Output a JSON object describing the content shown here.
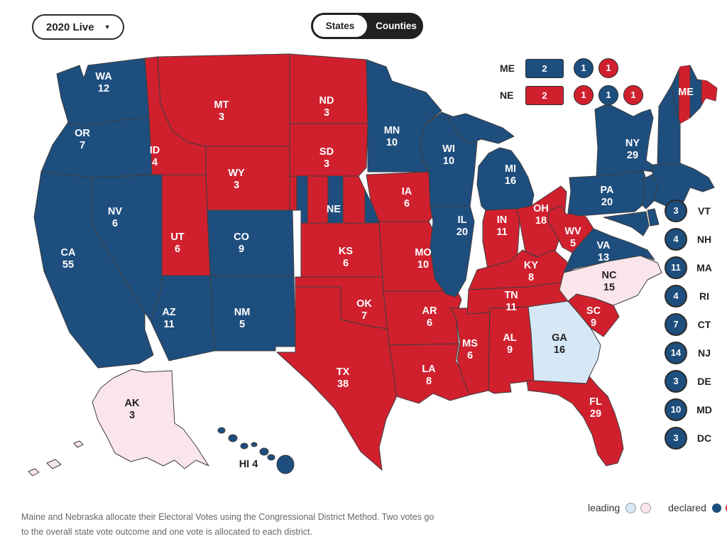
{
  "controls": {
    "year_dropdown": {
      "label": "2020 Live"
    },
    "view_toggle": {
      "options": [
        "States",
        "Counties"
      ],
      "selected": "States"
    }
  },
  "split_states_legend": {
    "rows": [
      {
        "state": "ME",
        "at_large_votes": "2",
        "at_large_party": "dem",
        "districts": [
          {
            "votes": "1",
            "party": "dem"
          },
          {
            "votes": "1",
            "party": "rep"
          }
        ]
      },
      {
        "state": "NE",
        "at_large_votes": "2",
        "at_large_party": "rep",
        "districts": [
          {
            "votes": "1",
            "party": "rep"
          },
          {
            "votes": "1",
            "party": "dem"
          },
          {
            "votes": "1",
            "party": "rep"
          }
        ]
      }
    ]
  },
  "small_states_list": [
    {
      "abbr": "VT",
      "votes": "3",
      "party": "dem",
      "status": "declared"
    },
    {
      "abbr": "NH",
      "votes": "4",
      "party": "dem",
      "status": "declared"
    },
    {
      "abbr": "MA",
      "votes": "11",
      "party": "dem",
      "status": "declared"
    },
    {
      "abbr": "RI",
      "votes": "4",
      "party": "dem",
      "status": "declared"
    },
    {
      "abbr": "CT",
      "votes": "7",
      "party": "dem",
      "status": "declared"
    },
    {
      "abbr": "NJ",
      "votes": "14",
      "party": "dem",
      "status": "declared"
    },
    {
      "abbr": "DE",
      "votes": "3",
      "party": "dem",
      "status": "declared"
    },
    {
      "abbr": "MD",
      "votes": "10",
      "party": "dem",
      "status": "declared"
    },
    {
      "abbr": "DC",
      "votes": "3",
      "party": "dem",
      "status": "declared"
    }
  ],
  "map_states": [
    {
      "abbr": "WA",
      "votes": "12",
      "party": "dem",
      "status": "declared"
    },
    {
      "abbr": "OR",
      "votes": "7",
      "party": "dem",
      "status": "declared"
    },
    {
      "abbr": "CA",
      "votes": "55",
      "party": "dem",
      "status": "declared"
    },
    {
      "abbr": "NV",
      "votes": "6",
      "party": "dem",
      "status": "declared"
    },
    {
      "abbr": "ID",
      "votes": "4",
      "party": "rep",
      "status": "declared"
    },
    {
      "abbr": "MT",
      "votes": "3",
      "party": "rep",
      "status": "declared"
    },
    {
      "abbr": "WY",
      "votes": "3",
      "party": "rep",
      "status": "declared"
    },
    {
      "abbr": "UT",
      "votes": "6",
      "party": "rep",
      "status": "declared"
    },
    {
      "abbr": "CO",
      "votes": "9",
      "party": "dem",
      "status": "declared"
    },
    {
      "abbr": "AZ",
      "votes": "11",
      "party": "dem",
      "status": "declared"
    },
    {
      "abbr": "NM",
      "votes": "5",
      "party": "dem",
      "status": "declared"
    },
    {
      "abbr": "ND",
      "votes": "3",
      "party": "rep",
      "status": "declared"
    },
    {
      "abbr": "SD",
      "votes": "3",
      "party": "rep",
      "status": "declared"
    },
    {
      "abbr": "NE",
      "votes": null,
      "party": "rep",
      "status": "declared",
      "split": true
    },
    {
      "abbr": "KS",
      "votes": "6",
      "party": "rep",
      "status": "declared"
    },
    {
      "abbr": "OK",
      "votes": "7",
      "party": "rep",
      "status": "declared"
    },
    {
      "abbr": "TX",
      "votes": "38",
      "party": "rep",
      "status": "declared"
    },
    {
      "abbr": "MN",
      "votes": "10",
      "party": "dem",
      "status": "declared"
    },
    {
      "abbr": "IA",
      "votes": "6",
      "party": "rep",
      "status": "declared"
    },
    {
      "abbr": "MO",
      "votes": "10",
      "party": "rep",
      "status": "declared"
    },
    {
      "abbr": "AR",
      "votes": "6",
      "party": "rep",
      "status": "declared"
    },
    {
      "abbr": "LA",
      "votes": "8",
      "party": "rep",
      "status": "declared"
    },
    {
      "abbr": "WI",
      "votes": "10",
      "party": "dem",
      "status": "declared"
    },
    {
      "abbr": "IL",
      "votes": "20",
      "party": "dem",
      "status": "declared"
    },
    {
      "abbr": "MS",
      "votes": "6",
      "party": "rep",
      "status": "declared"
    },
    {
      "abbr": "MI",
      "votes": "16",
      "party": "dem",
      "status": "declared"
    },
    {
      "abbr": "IN",
      "votes": "11",
      "party": "rep",
      "status": "declared"
    },
    {
      "abbr": "OH",
      "votes": "18",
      "party": "rep",
      "status": "declared"
    },
    {
      "abbr": "WV",
      "votes": "5",
      "party": "rep",
      "status": "declared"
    },
    {
      "abbr": "KY",
      "votes": "8",
      "party": "rep",
      "status": "declared"
    },
    {
      "abbr": "TN",
      "votes": "11",
      "party": "rep",
      "status": "declared"
    },
    {
      "abbr": "AL",
      "votes": "9",
      "party": "rep",
      "status": "declared"
    },
    {
      "abbr": "GA",
      "votes": "16",
      "party": "dem",
      "status": "leading"
    },
    {
      "abbr": "FL",
      "votes": "29",
      "party": "rep",
      "status": "declared"
    },
    {
      "abbr": "SC",
      "votes": "9",
      "party": "rep",
      "status": "declared"
    },
    {
      "abbr": "NC",
      "votes": "15",
      "party": "rep",
      "status": "leading"
    },
    {
      "abbr": "VA",
      "votes": "13",
      "party": "dem",
      "status": "declared"
    },
    {
      "abbr": "PA",
      "votes": "20",
      "party": "dem",
      "status": "declared"
    },
    {
      "abbr": "NY",
      "votes": "29",
      "party": "dem",
      "status": "declared"
    },
    {
      "abbr": "ME",
      "votes": null,
      "party": "dem",
      "status": "declared",
      "split": true
    },
    {
      "abbr": "AK",
      "votes": "3",
      "party": "rep",
      "status": "leading"
    },
    {
      "abbr": "HI",
      "votes": "4",
      "party": "dem",
      "status": "declared"
    }
  ],
  "footnote": "Maine and Nebraska allocate their Electoral Votes using the Congressional District Method. Two votes go to the overall state vote outcome and one vote is allocated to each district.",
  "legend": {
    "leading_label": "leading",
    "declared_label": "declared"
  },
  "colors": {
    "dem": "#1D4E7E",
    "rep": "#D0202E",
    "dem_leading": "#D6E8F6",
    "rep_leading": "#FAE6EA",
    "outline": "#3E3E40",
    "dark_text": "#232021"
  }
}
